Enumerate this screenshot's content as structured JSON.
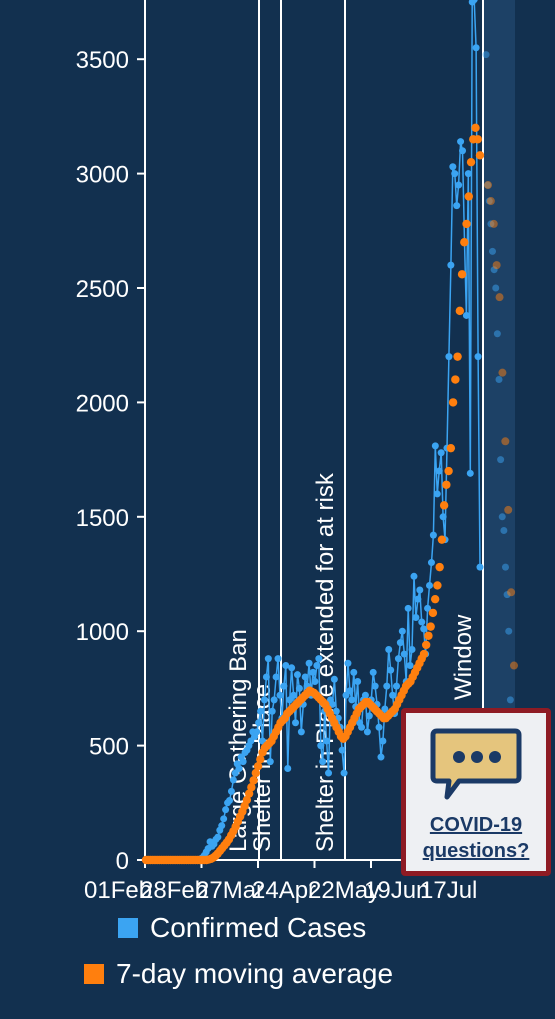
{
  "chart_data": {
    "type": "line",
    "title": "",
    "xlabel": "",
    "ylabel": "",
    "ylim": [
      0,
      3750
    ],
    "y_ticks": [
      0,
      500,
      1000,
      1500,
      2000,
      2500,
      3000,
      3500
    ],
    "y_tick_labels": [
      "0",
      "500",
      "1000",
      "1500",
      "2000",
      "2500",
      "3000",
      "3500"
    ],
    "x_tick_labels": [
      "01Feb",
      "28Feb",
      "27Mar",
      "24Apr",
      "22May",
      "19Jun",
      "17Jul"
    ],
    "grid": false,
    "legend_position": "bottom",
    "series": [
      {
        "name": "Confirmed Cases",
        "style": "line+points",
        "color": "#3ba4f2",
        "values": [
          0,
          0,
          0,
          0,
          0,
          0,
          0,
          0,
          0,
          0,
          0,
          0,
          0,
          0,
          0,
          0,
          0,
          0,
          0,
          0,
          0,
          0,
          0,
          0,
          0,
          0,
          0,
          0,
          5,
          10,
          20,
          35,
          50,
          80,
          60,
          70,
          90,
          100,
          130,
          150,
          180,
          220,
          250,
          260,
          300,
          350,
          380,
          420,
          400,
          450,
          430,
          470,
          480,
          500,
          520,
          560,
          540,
          560,
          600,
          650,
          520,
          700,
          800,
          880,
          430,
          650,
          700,
          800,
          880,
          720,
          620,
          760,
          850,
          400,
          700,
          840,
          720,
          600,
          810,
          750,
          560,
          680,
          800,
          760,
          860,
          720,
          820,
          780,
          850,
          880,
          500,
          430,
          650,
          520,
          380,
          700,
          680,
          790,
          650,
          620,
          580,
          480,
          380,
          720,
          860,
          740,
          700,
          820,
          670,
          780,
          600,
          580,
          700,
          720,
          560,
          630,
          700,
          820,
          760,
          680,
          580,
          450,
          520,
          660,
          760,
          920,
          830,
          720,
          640,
          760,
          880,
          950,
          1000,
          900,
          780,
          1100,
          850,
          920,
          1240,
          1060,
          1140,
          1180,
          1040,
          1010,
          900,
          1100,
          1200,
          1300,
          1420,
          1810,
          1600,
          1700,
          1780,
          1500,
          1400,
          1800,
          2200,
          2600,
          3030,
          3000,
          2860,
          2950,
          3140,
          3100,
          2700,
          2380,
          3000,
          1690,
          3750,
          3760,
          3550,
          2200,
          1280
        ],
        "faded_values": [
          3520,
          2950,
          2880,
          2780,
          2660,
          2580,
          2500,
          2300,
          2100,
          1750,
          1500,
          1440,
          1280,
          1160,
          1000,
          700,
          600
        ]
      },
      {
        "name": "7-day moving average",
        "style": "points",
        "color": "#ff7f0e",
        "values": [
          0,
          0,
          0,
          0,
          0,
          0,
          0,
          0,
          0,
          0,
          0,
          0,
          0,
          0,
          0,
          0,
          0,
          0,
          0,
          0,
          0,
          0,
          0,
          0,
          0,
          0,
          0,
          0,
          2,
          5,
          10,
          18,
          28,
          40,
          52,
          64,
          76,
          90,
          108,
          126,
          146,
          168,
          190,
          212,
          236,
          262,
          290,
          318,
          348,
          380,
          410,
          440,
          470,
          490,
          500,
          510,
          520,
          540,
          560,
          580,
          600,
          610,
          620,
          640,
          650,
          660,
          670,
          680,
          690,
          700,
          710,
          720,
          730,
          740,
          735,
          730,
          720,
          710,
          700,
          690,
          680,
          660,
          640,
          620,
          600,
          580,
          560,
          540,
          530,
          540,
          560,
          580,
          600,
          620,
          640,
          660,
          670,
          680,
          690,
          690,
          680,
          670,
          660,
          650,
          640,
          630,
          620,
          620,
          630,
          640,
          650,
          660,
          680,
          700,
          720,
          740,
          760,
          770,
          780,
          800,
          820,
          840,
          860,
          880,
          900,
          940,
          980,
          1020,
          1080,
          1140,
          1200,
          1280,
          1400,
          1550,
          1640,
          1700,
          1800,
          2000,
          2100,
          2200,
          2400,
          2560,
          2700,
          2780,
          2900,
          3050,
          3150,
          3200,
          3150,
          3080
        ],
        "faded_values": [
          2950,
          2880,
          2780,
          2600,
          2460,
          2130,
          1830,
          1530,
          1170,
          850
        ]
      }
    ],
    "events": [
      {
        "label": "Large Gathering Ban"
      },
      {
        "label": "Shelter in Place"
      },
      {
        "label": "Shelter in Place extended for at risk"
      },
      {
        "label": "Window"
      }
    ]
  },
  "legend": {
    "confirmed_label": "Confirmed Cases",
    "average_label": "7-day moving average",
    "confirmed_color": "#3ba4f2",
    "average_color": "#ff7f0e"
  },
  "widget": {
    "line1": "COVID-19",
    "line2": "questions?",
    "icon": "chat-bubble-icon"
  }
}
